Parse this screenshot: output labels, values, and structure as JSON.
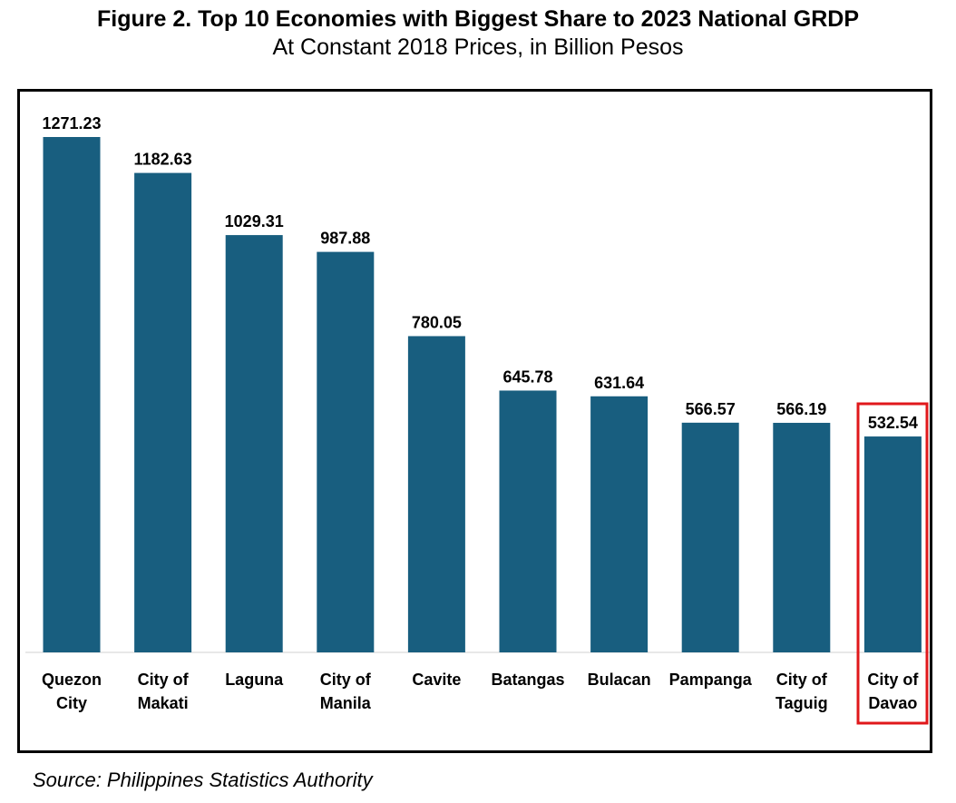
{
  "figure": {
    "title": "Figure 2. Top 10 Economies with Biggest Share to 2023 National GRDP",
    "subtitle": "At Constant 2018 Prices, in Billion Pesos",
    "source": "Source: Philippines Statistics Authority"
  },
  "colors": {
    "bar": "#185e7f",
    "highlight_box": "#e0181b",
    "axis": "#d0d0d0",
    "text": "#000000"
  },
  "chart_data": {
    "type": "bar",
    "title": "Figure 2. Top 10 Economies with Biggest Share to 2023 National GRDP",
    "subtitle": "At Constant 2018 Prices, in Billion Pesos",
    "categories": [
      [
        "Quezon",
        "City"
      ],
      [
        "City of",
        "Makati"
      ],
      [
        "Laguna"
      ],
      [
        "City of",
        "Manila"
      ],
      [
        "Cavite"
      ],
      [
        "Batangas"
      ],
      [
        "Bulacan"
      ],
      [
        "Pampanga"
      ],
      [
        "City of",
        "Taguig"
      ],
      [
        "City of",
        "Davao"
      ]
    ],
    "values": [
      1271.23,
      1182.63,
      1029.31,
      987.88,
      780.05,
      645.78,
      631.64,
      566.57,
      566.19,
      532.54
    ],
    "value_labels": [
      "1271.23",
      "1182.63",
      "1029.31",
      "987.88",
      "780.05",
      "645.78",
      "631.64",
      "566.57",
      "566.19",
      "532.54"
    ],
    "xlabel": "",
    "ylabel": "",
    "ylim": [
      0,
      1271.23
    ],
    "grid": false,
    "legend": "none",
    "highlighted_category": "City of Davao"
  }
}
